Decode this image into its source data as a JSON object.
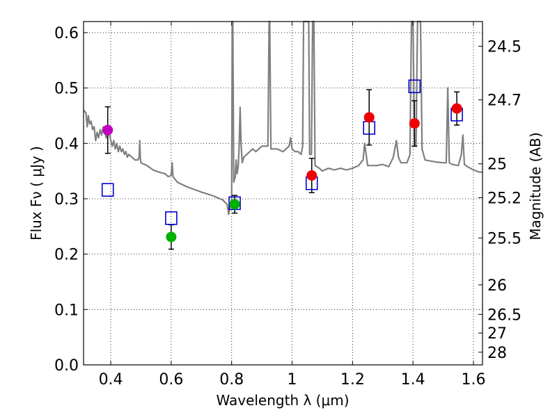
{
  "chart_data": {
    "type": "scatter",
    "xlabel": "Wavelength  λ (μm)",
    "ylabel": "Flux  Fν  ( μJy )",
    "y2label": "Magnitude (AB)",
    "xlim": [
      0.31,
      1.63
    ],
    "ylim": [
      0.0,
      0.62
    ],
    "grid": true,
    "x_ticks": [
      0.4,
      0.6,
      0.8,
      1.0,
      1.2,
      1.4,
      1.6
    ],
    "x_tick_labels": [
      "0.4",
      "0.6",
      "0.8",
      "1",
      "1.2",
      "1.4",
      "1.6"
    ],
    "y_ticks": [
      0.0,
      0.1,
      0.2,
      0.3,
      0.4,
      0.5,
      0.6
    ],
    "y_tick_labels": [
      "0.0",
      "0.1",
      "0.2",
      "0.3",
      "0.4",
      "0.5",
      "0.6"
    ],
    "y2_ticks": [
      {
        "flux": 0.5754,
        "label": "24.5"
      },
      {
        "flux": 0.4786,
        "label": "24.7"
      },
      {
        "flux": 0.3631,
        "label": "25"
      },
      {
        "flux": 0.302,
        "label": "25.2"
      },
      {
        "flux": 0.2291,
        "label": "25.5"
      },
      {
        "flux": 0.1445,
        "label": "26"
      },
      {
        "flux": 0.0912,
        "label": "26.5"
      },
      {
        "flux": 0.0575,
        "label": "27"
      },
      {
        "flux": 0.0229,
        "label": "28"
      }
    ],
    "series": [
      {
        "name": "model spectrum",
        "kind": "line",
        "color": "#7f7f7f",
        "points": [
          [
            0.31,
            0.46
          ],
          [
            0.318,
            0.455
          ],
          [
            0.322,
            0.43
          ],
          [
            0.326,
            0.45
          ],
          [
            0.33,
            0.435
          ],
          [
            0.335,
            0.44
          ],
          [
            0.34,
            0.425
          ],
          [
            0.345,
            0.43
          ],
          [
            0.35,
            0.405
          ],
          [
            0.355,
            0.42
          ],
          [
            0.36,
            0.41
          ],
          [
            0.365,
            0.425
          ],
          [
            0.37,
            0.415
          ],
          [
            0.375,
            0.43
          ],
          [
            0.38,
            0.42
          ],
          [
            0.385,
            0.41
          ],
          [
            0.39,
            0.415
          ],
          [
            0.395,
            0.42
          ],
          [
            0.4,
            0.405
          ],
          [
            0.405,
            0.395
          ],
          [
            0.41,
            0.405
          ],
          [
            0.415,
            0.39
          ],
          [
            0.42,
            0.4
          ],
          [
            0.425,
            0.385
          ],
          [
            0.43,
            0.395
          ],
          [
            0.435,
            0.385
          ],
          [
            0.44,
            0.39
          ],
          [
            0.445,
            0.38
          ],
          [
            0.45,
            0.385
          ],
          [
            0.455,
            0.375
          ],
          [
            0.46,
            0.38
          ],
          [
            0.47,
            0.375
          ],
          [
            0.48,
            0.37
          ],
          [
            0.49,
            0.37
          ],
          [
            0.494,
            0.375
          ],
          [
            0.496,
            0.405
          ],
          [
            0.498,
            0.372
          ],
          [
            0.5,
            0.365
          ],
          [
            0.52,
            0.36
          ],
          [
            0.54,
            0.352
          ],
          [
            0.56,
            0.348
          ],
          [
            0.58,
            0.345
          ],
          [
            0.59,
            0.34
          ],
          [
            0.6,
            0.342
          ],
          [
            0.603,
            0.365
          ],
          [
            0.606,
            0.34
          ],
          [
            0.62,
            0.33
          ],
          [
            0.65,
            0.322
          ],
          [
            0.66,
            0.32
          ],
          [
            0.7,
            0.312
          ],
          [
            0.74,
            0.305
          ],
          [
            0.77,
            0.298
          ],
          [
            0.785,
            0.29
          ],
          [
            0.79,
            0.272
          ],
          [
            0.795,
            0.285
          ],
          [
            0.8,
            0.3
          ],
          [
            0.802,
            0.62
          ],
          [
            0.804,
            0.62
          ],
          [
            0.807,
            0.33
          ],
          [
            0.812,
            0.34
          ],
          [
            0.815,
            0.37
          ],
          [
            0.818,
            0.345
          ],
          [
            0.822,
            0.36
          ],
          [
            0.825,
            0.4
          ],
          [
            0.828,
            0.465
          ],
          [
            0.831,
            0.4
          ],
          [
            0.835,
            0.365
          ],
          [
            0.84,
            0.375
          ],
          [
            0.85,
            0.38
          ],
          [
            0.86,
            0.385
          ],
          [
            0.87,
            0.39
          ],
          [
            0.88,
            0.385
          ],
          [
            0.89,
            0.39
          ],
          [
            0.9,
            0.395
          ],
          [
            0.91,
            0.395
          ],
          [
            0.92,
            0.395
          ],
          [
            0.924,
            0.62
          ],
          [
            0.926,
            0.62
          ],
          [
            0.93,
            0.39
          ],
          [
            0.95,
            0.39
          ],
          [
            0.97,
            0.385
          ],
          [
            0.99,
            0.395
          ],
          [
            0.995,
            0.41
          ],
          [
            1.0,
            0.39
          ],
          [
            1.01,
            0.385
          ],
          [
            1.02,
            0.385
          ],
          [
            1.03,
            0.38
          ],
          [
            1.035,
            0.395
          ],
          [
            1.038,
            0.62
          ],
          [
            1.055,
            0.62
          ],
          [
            1.058,
            0.38
          ],
          [
            1.064,
            0.38
          ],
          [
            1.068,
            0.62
          ],
          [
            1.072,
            0.62
          ],
          [
            1.076,
            0.36
          ],
          [
            1.09,
            0.355
          ],
          [
            1.1,
            0.35
          ],
          [
            1.12,
            0.355
          ],
          [
            1.14,
            0.352
          ],
          [
            1.16,
            0.355
          ],
          [
            1.18,
            0.352
          ],
          [
            1.2,
            0.355
          ],
          [
            1.22,
            0.36
          ],
          [
            1.235,
            0.37
          ],
          [
            1.24,
            0.4
          ],
          [
            1.245,
            0.38
          ],
          [
            1.25,
            0.36
          ],
          [
            1.26,
            0.36
          ],
          [
            1.28,
            0.36
          ],
          [
            1.3,
            0.362
          ],
          [
            1.32,
            0.358
          ],
          [
            1.335,
            0.375
          ],
          [
            1.345,
            0.405
          ],
          [
            1.352,
            0.375
          ],
          [
            1.36,
            0.365
          ],
          [
            1.38,
            0.365
          ],
          [
            1.39,
            0.38
          ],
          [
            1.395,
            0.62
          ],
          [
            1.4,
            0.62
          ],
          [
            1.405,
            0.4
          ],
          [
            1.41,
            0.395
          ],
          [
            1.415,
            0.62
          ],
          [
            1.425,
            0.62
          ],
          [
            1.43,
            0.39
          ],
          [
            1.44,
            0.37
          ],
          [
            1.46,
            0.368
          ],
          [
            1.48,
            0.366
          ],
          [
            1.5,
            0.365
          ],
          [
            1.51,
            0.365
          ],
          [
            1.515,
            0.5
          ],
          [
            1.52,
            0.365
          ],
          [
            1.53,
            0.362
          ],
          [
            1.55,
            0.36
          ],
          [
            1.56,
            0.38
          ],
          [
            1.565,
            0.415
          ],
          [
            1.57,
            0.362
          ],
          [
            1.58,
            0.358
          ],
          [
            1.6,
            0.352
          ],
          [
            1.62,
            0.348
          ],
          [
            1.63,
            0.348
          ]
        ]
      },
      {
        "name": "model photometry",
        "kind": "open-square",
        "color": "#0000cc",
        "points": [
          {
            "x": 0.39,
            "y": 0.316
          },
          {
            "x": 0.6,
            "y": 0.265
          },
          {
            "x": 0.81,
            "y": 0.292
          },
          {
            "x": 1.065,
            "y": 0.328
          },
          {
            "x": 1.255,
            "y": 0.428
          },
          {
            "x": 1.405,
            "y": 0.503
          },
          {
            "x": 1.545,
            "y": 0.452
          }
        ]
      },
      {
        "name": "observed (magenta)",
        "kind": "filled-circle",
        "color": "#c000c0",
        "points": [
          {
            "x": 0.39,
            "y": 0.424,
            "err": 0.042
          }
        ]
      },
      {
        "name": "observed (green)",
        "kind": "filled-circle",
        "color": "#00b000",
        "points": [
          {
            "x": 0.6,
            "y": 0.231,
            "err": 0.022
          },
          {
            "x": 0.81,
            "y": 0.29,
            "err": 0.016
          }
        ]
      },
      {
        "name": "observed (red)",
        "kind": "filled-circle",
        "color": "#ee0000",
        "points": [
          {
            "x": 1.065,
            "y": 0.342,
            "err": 0.031
          },
          {
            "x": 1.255,
            "y": 0.447,
            "err": 0.05
          },
          {
            "x": 1.405,
            "y": 0.436,
            "err": 0.041
          },
          {
            "x": 1.545,
            "y": 0.463,
            "err": 0.03
          }
        ]
      }
    ]
  }
}
